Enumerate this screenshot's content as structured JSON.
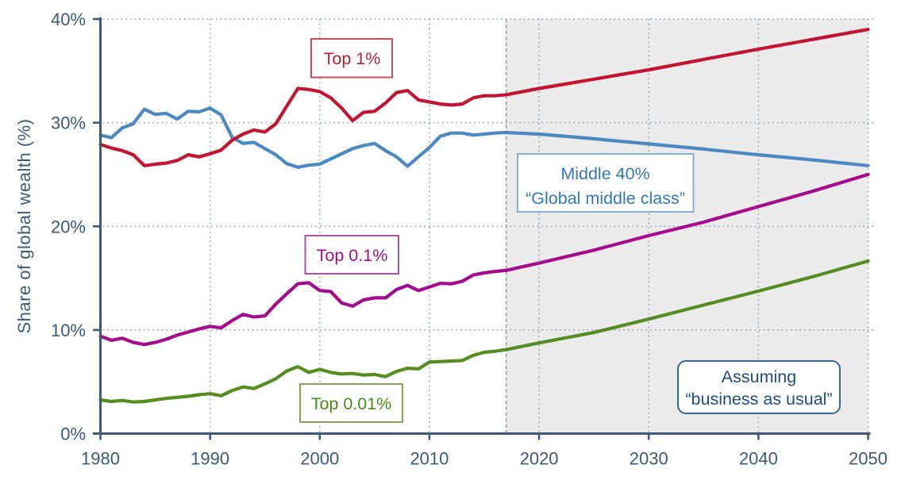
{
  "chart_data": {
    "type": "line",
    "title": "",
    "xlabel": "",
    "ylabel": "Share of global wealth (%)",
    "xlim": [
      1980,
      2050
    ],
    "ylim": [
      0,
      40
    ],
    "x_ticks": [
      "1980",
      "1990",
      "2000",
      "2010",
      "2020",
      "2030",
      "2040",
      "2050"
    ],
    "y_ticks": [
      "0%",
      "10%",
      "20%",
      "30%",
      "40%"
    ],
    "grid": true,
    "legend_position": "none",
    "projection_start_year": 2017,
    "projection_region_color": "#ebebeb",
    "projection_divider_color": "#8a9aa9",
    "axis_color": "#3c5a76",
    "tick_label_color": "#3c5a76",
    "gridline_color": "#9fabb5",
    "series": [
      {
        "name": "Middle 40% “Global middle class”",
        "color": "#4c89c3",
        "x": [
          1980,
          1981,
          1982,
          1983,
          1984,
          1985,
          1986,
          1987,
          1988,
          1989,
          1990,
          1991,
          1992,
          1993,
          1994,
          1995,
          1996,
          1997,
          1998,
          1999,
          2000,
          2001,
          2002,
          2003,
          2004,
          2005,
          2006,
          2007,
          2008,
          2009,
          2010,
          2011,
          2012,
          2013,
          2014,
          2015,
          2016,
          2017,
          2018,
          2020,
          2025,
          2030,
          2035,
          2040,
          2045,
          2050
        ],
        "values": [
          28.8,
          28.55,
          29.5,
          29.9,
          31.3,
          30.8,
          30.9,
          30.35,
          31.1,
          31.05,
          31.4,
          30.75,
          28.6,
          28.0,
          28.1,
          27.5,
          26.9,
          26.05,
          25.7,
          25.9,
          26.0,
          26.5,
          27.0,
          27.5,
          27.8,
          28.0,
          27.3,
          26.7,
          25.8,
          26.7,
          27.6,
          28.7,
          29.0,
          29.0,
          28.8,
          28.9,
          29.0,
          29.05,
          29.0,
          28.9,
          28.45,
          27.95,
          27.45,
          26.9,
          26.4,
          25.85
        ]
      },
      {
        "name": "Top 0.1%",
        "color": "#a50b8d",
        "x": [
          1980,
          1981,
          1982,
          1983,
          1984,
          1985,
          1986,
          1987,
          1988,
          1989,
          1990,
          1991,
          1992,
          1993,
          1994,
          1995,
          1996,
          1997,
          1998,
          1999,
          2000,
          2001,
          2002,
          2003,
          2004,
          2005,
          2006,
          2007,
          2008,
          2009,
          2010,
          2011,
          2012,
          2013,
          2014,
          2015,
          2016,
          2017,
          2020,
          2025,
          2030,
          2035,
          2040,
          2045,
          2050
        ],
        "values": [
          9.4,
          9.0,
          9.2,
          8.8,
          8.6,
          8.8,
          9.1,
          9.5,
          9.8,
          10.1,
          10.35,
          10.2,
          10.9,
          11.5,
          11.25,
          11.35,
          12.5,
          13.5,
          14.45,
          14.55,
          13.8,
          13.7,
          12.6,
          12.3,
          12.9,
          13.1,
          13.1,
          13.9,
          14.3,
          13.8,
          14.15,
          14.5,
          14.45,
          14.7,
          15.3,
          15.5,
          15.65,
          15.75,
          16.45,
          17.7,
          19.1,
          20.4,
          21.9,
          23.4,
          25.0
        ]
      },
      {
        "name": "Top 0.01%",
        "color": "#568d20",
        "x": [
          1980,
          1981,
          1982,
          1983,
          1984,
          1985,
          1986,
          1987,
          1988,
          1989,
          1990,
          1991,
          1992,
          1993,
          1994,
          1995,
          1996,
          1997,
          1998,
          1999,
          2000,
          2001,
          2002,
          2003,
          2004,
          2005,
          2006,
          2007,
          2008,
          2009,
          2010,
          2011,
          2012,
          2013,
          2014,
          2015,
          2016,
          2017,
          2020,
          2025,
          2030,
          2035,
          2040,
          2045,
          2050
        ],
        "values": [
          3.25,
          3.1,
          3.2,
          3.05,
          3.1,
          3.25,
          3.4,
          3.5,
          3.6,
          3.75,
          3.85,
          3.65,
          4.15,
          4.5,
          4.35,
          4.8,
          5.3,
          6.05,
          6.45,
          5.9,
          6.2,
          5.9,
          5.75,
          5.8,
          5.65,
          5.7,
          5.5,
          6.0,
          6.3,
          6.25,
          6.9,
          6.95,
          7.0,
          7.05,
          7.55,
          7.85,
          7.95,
          8.1,
          8.75,
          9.75,
          11.05,
          12.4,
          13.75,
          15.15,
          16.65
        ]
      },
      {
        "name": "Top 1%",
        "color": "#c31431",
        "x": [
          1980,
          1981,
          1982,
          1983,
          1984,
          1985,
          1986,
          1987,
          1988,
          1989,
          1990,
          1991,
          1992,
          1993,
          1994,
          1995,
          1996,
          1997,
          1998,
          1999,
          2000,
          2001,
          2002,
          2003,
          2004,
          2005,
          2006,
          2007,
          2008,
          2009,
          2010,
          2011,
          2012,
          2013,
          2014,
          2015,
          2016,
          2017,
          2020,
          2025,
          2030,
          2035,
          2040,
          2045,
          2050
        ],
        "values": [
          27.9,
          27.55,
          27.3,
          26.9,
          25.85,
          26.0,
          26.1,
          26.35,
          26.9,
          26.7,
          27.0,
          27.35,
          28.3,
          28.9,
          29.3,
          29.1,
          29.9,
          31.6,
          33.3,
          33.2,
          33.0,
          32.4,
          31.4,
          30.2,
          31.0,
          31.1,
          31.9,
          32.9,
          33.1,
          32.2,
          32.0,
          31.8,
          31.7,
          31.8,
          32.4,
          32.6,
          32.6,
          32.7,
          33.3,
          34.2,
          35.1,
          36.1,
          37.1,
          38.05,
          39.0
        ]
      }
    ],
    "annotations": [
      {
        "id": "top1",
        "lines": [
          "Top 1%"
        ],
        "text_color": "#b91d32",
        "border_color": "#cf4a63"
      },
      {
        "id": "middle40",
        "lines": [
          "Middle 40%",
          "“Global middle class”"
        ],
        "text_color": "#3379b8",
        "border_color": "#74a3cf"
      },
      {
        "id": "top01",
        "lines": [
          "Top 0.1%"
        ],
        "text_color": "#9c1186",
        "border_color": "#b153a5"
      },
      {
        "id": "top001",
        "lines": [
          "Top 0.01%"
        ],
        "text_color": "#4d8a1d",
        "border_color": "#7fa858"
      },
      {
        "id": "assuming",
        "lines": [
          "Assuming",
          "“business as usual”"
        ],
        "text_color": "#1d4d7c",
        "border_color": "#3a6690"
      }
    ]
  }
}
